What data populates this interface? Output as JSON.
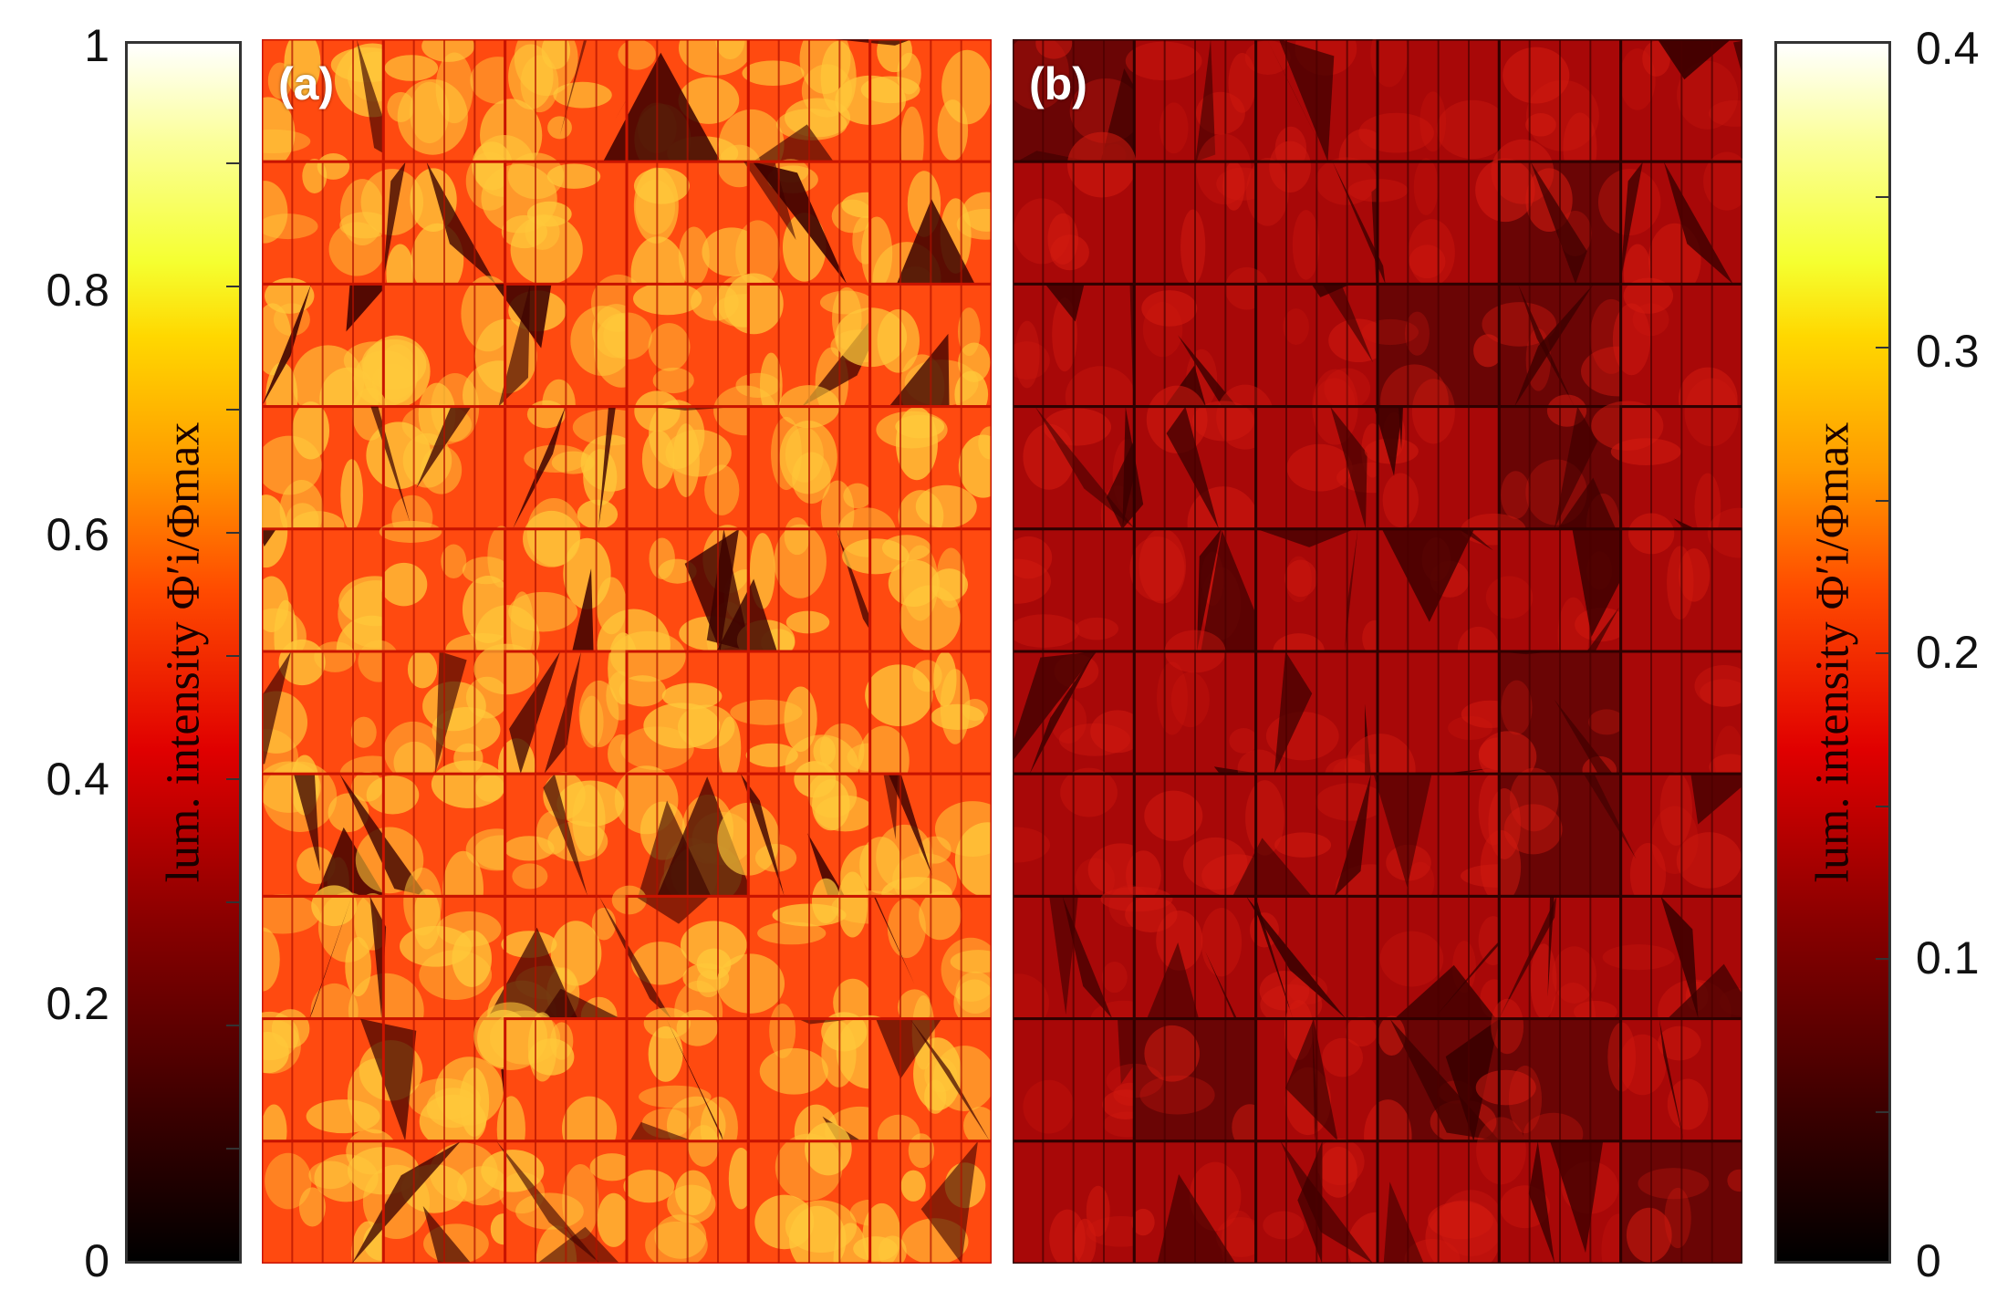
{
  "panels": [
    {
      "label": "(a)"
    },
    {
      "label": "(b)"
    }
  ],
  "colorbars": {
    "left": {
      "title": "lum. intensity Φ′i/Φmax",
      "ticks": [
        "1",
        "0.8",
        "0.6",
        "0.4",
        "0.2",
        "0"
      ],
      "range": [
        0,
        1
      ]
    },
    "right": {
      "title": "lum. intensity Φ′i/Φmax",
      "ticks": [
        "0.4",
        "0.3",
        "0.2",
        "0.1",
        "0"
      ],
      "range": [
        0,
        0.4
      ]
    },
    "colormap": "hot",
    "colors": [
      "#000000",
      "#8a0000",
      "#e00000",
      "#ff9a00",
      "#ffd800",
      "#ffffff"
    ]
  },
  "module": {
    "rows": 10,
    "cols": 6,
    "fingers_per_cell": 3
  },
  "panel_tones": {
    "a": {
      "base": "#ff4a10",
      "bright": "#ffc83a",
      "dark": "#3a0000"
    },
    "b": {
      "base": "#a80808",
      "bright": "#d21a10",
      "dark": "#3a0000"
    }
  }
}
